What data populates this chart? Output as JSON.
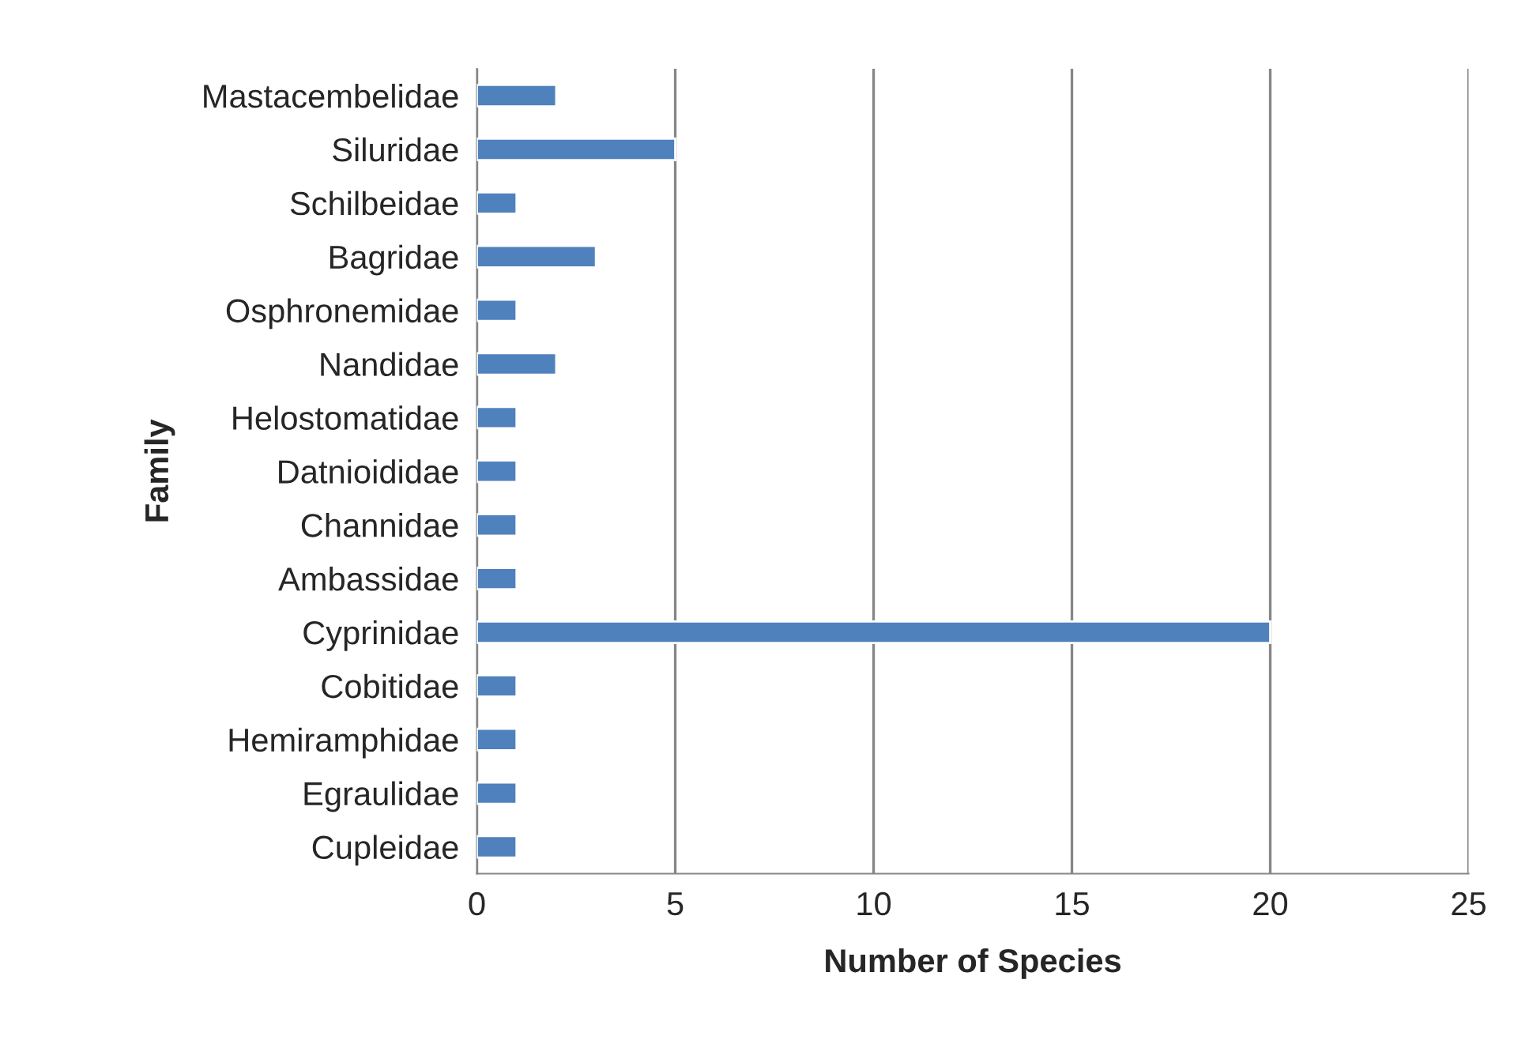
{
  "chart_data": {
    "type": "bar",
    "orientation": "horizontal",
    "xlabel": "Number of Species",
    "ylabel": "Family",
    "categories": [
      "Mastacembelidae",
      "Siluridae",
      "Schilbeidae",
      "Bagridae",
      "Osphronemidae",
      "Nandidae",
      "Helostomatidae",
      "Datnioididae",
      "Channidae",
      "Ambassidae",
      "Cyprinidae",
      "Cobitidae",
      "Hemiramphidae",
      "Egraulidae",
      "Cupleidae"
    ],
    "values": [
      2,
      5,
      1,
      3,
      1,
      2,
      1,
      1,
      1,
      1,
      20,
      1,
      1,
      1,
      1
    ],
    "color": "#4f81bd",
    "xlim": [
      0,
      25
    ],
    "xticks": [
      0,
      5,
      10,
      15,
      20,
      25
    ],
    "grid": "x",
    "legend": false
  }
}
